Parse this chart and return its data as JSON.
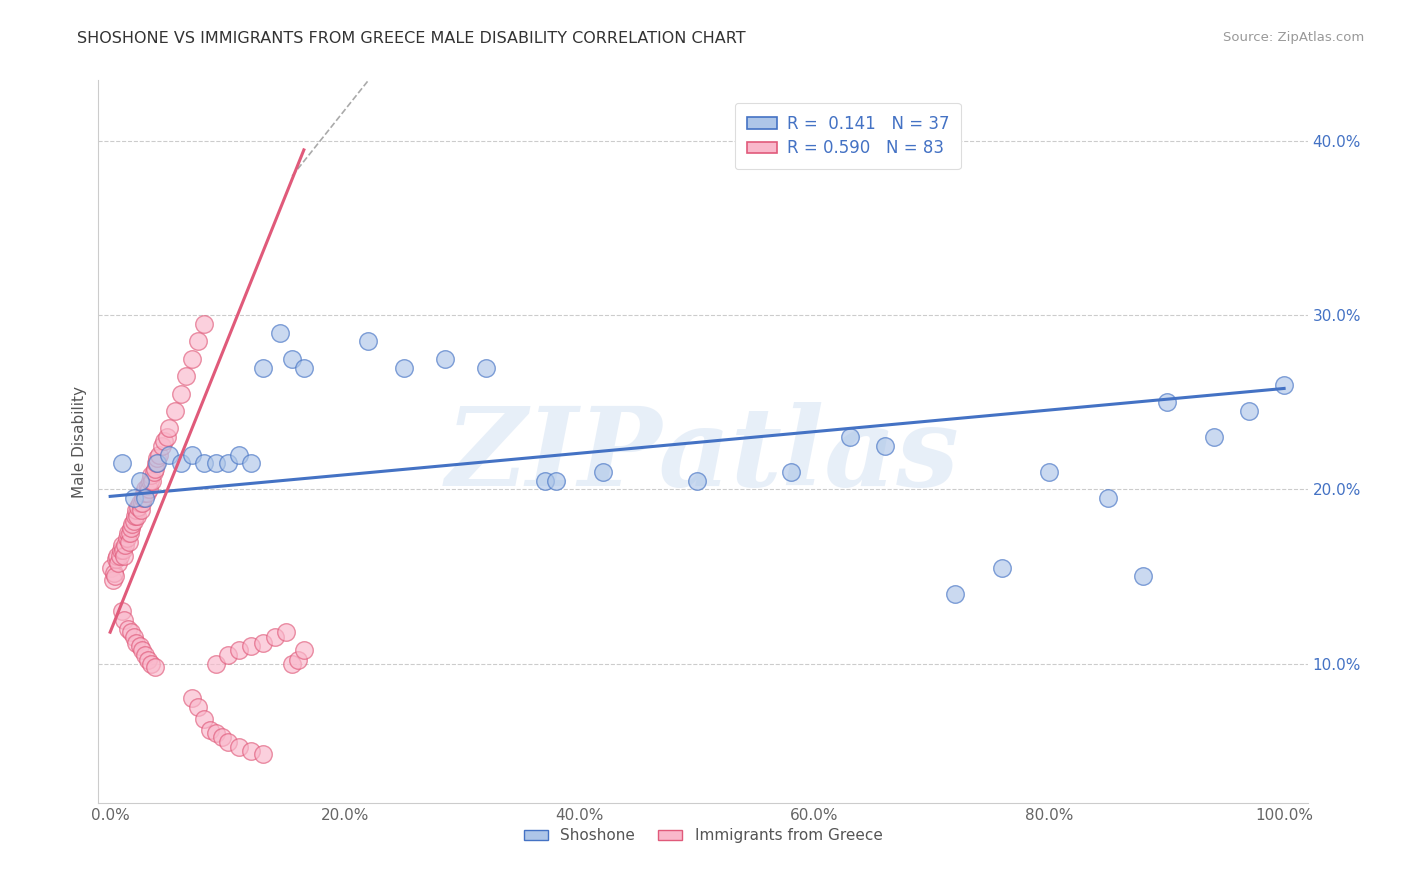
{
  "title": "SHOSHONE VS IMMIGRANTS FROM GREECE MALE DISABILITY CORRELATION CHART",
  "source_text": "Source: ZipAtlas.com",
  "ylabel": "Male Disability",
  "watermark": "ZIPatlas",
  "shoshone_R": 0.141,
  "shoshone_N": 37,
  "greece_R": 0.59,
  "greece_N": 83,
  "shoshone_color": "#aec6e8",
  "greece_color": "#f9b8cb",
  "shoshone_line_color": "#4472c4",
  "greece_line_color": "#e05a7a",
  "background_color": "#ffffff",
  "grid_color": "#cccccc",
  "xlim": [
    -0.01,
    1.02
  ],
  "ylim": [
    0.02,
    0.435
  ],
  "xtick_labels": [
    "0.0%",
    "20.0%",
    "40.0%",
    "60.0%",
    "80.0%",
    "100.0%"
  ],
  "xtick_values": [
    0.0,
    0.2,
    0.4,
    0.6,
    0.8,
    1.0
  ],
  "ytick_labels": [
    "10.0%",
    "20.0%",
    "30.0%",
    "40.0%"
  ],
  "ytick_values": [
    0.1,
    0.2,
    0.3,
    0.4
  ],
  "shoshone_x": [
    0.01,
    0.02,
    0.025,
    0.03,
    0.04,
    0.05,
    0.06,
    0.07,
    0.08,
    0.09,
    0.1,
    0.11,
    0.12,
    0.13,
    0.145,
    0.155,
    0.165,
    0.22,
    0.25,
    0.285,
    0.32,
    0.37,
    0.42,
    0.5,
    0.58,
    0.63,
    0.66,
    0.72,
    0.76,
    0.8,
    0.85,
    0.88,
    0.9,
    0.94,
    0.97,
    1.0,
    0.38
  ],
  "shoshone_y": [
    0.215,
    0.195,
    0.205,
    0.195,
    0.215,
    0.22,
    0.215,
    0.22,
    0.215,
    0.215,
    0.215,
    0.22,
    0.215,
    0.27,
    0.29,
    0.275,
    0.27,
    0.285,
    0.27,
    0.275,
    0.27,
    0.205,
    0.21,
    0.205,
    0.21,
    0.23,
    0.225,
    0.14,
    0.155,
    0.21,
    0.195,
    0.15,
    0.25,
    0.23,
    0.245,
    0.26,
    0.205
  ],
  "greece_x": [
    0.001,
    0.002,
    0.003,
    0.004,
    0.005,
    0.006,
    0.007,
    0.008,
    0.009,
    0.01,
    0.011,
    0.012,
    0.013,
    0.014,
    0.015,
    0.016,
    0.017,
    0.018,
    0.019,
    0.02,
    0.021,
    0.022,
    0.023,
    0.024,
    0.025,
    0.026,
    0.027,
    0.028,
    0.029,
    0.03,
    0.031,
    0.032,
    0.033,
    0.034,
    0.035,
    0.036,
    0.037,
    0.038,
    0.039,
    0.04,
    0.042,
    0.044,
    0.046,
    0.048,
    0.05,
    0.055,
    0.06,
    0.065,
    0.07,
    0.075,
    0.08,
    0.09,
    0.1,
    0.11,
    0.12,
    0.13,
    0.14,
    0.15,
    0.155,
    0.16,
    0.165,
    0.07,
    0.075,
    0.08,
    0.085,
    0.09,
    0.095,
    0.1,
    0.11,
    0.12,
    0.13,
    0.01,
    0.012,
    0.015,
    0.018,
    0.02,
    0.022,
    0.025,
    0.027,
    0.03,
    0.032,
    0.035,
    0.038
  ],
  "greece_y": [
    0.155,
    0.148,
    0.152,
    0.15,
    0.16,
    0.162,
    0.158,
    0.162,
    0.165,
    0.168,
    0.165,
    0.162,
    0.168,
    0.172,
    0.175,
    0.17,
    0.175,
    0.178,
    0.18,
    0.182,
    0.185,
    0.188,
    0.185,
    0.19,
    0.192,
    0.188,
    0.192,
    0.195,
    0.198,
    0.2,
    0.198,
    0.202,
    0.2,
    0.205,
    0.208,
    0.205,
    0.21,
    0.212,
    0.215,
    0.218,
    0.22,
    0.225,
    0.228,
    0.23,
    0.235,
    0.245,
    0.255,
    0.265,
    0.275,
    0.285,
    0.295,
    0.1,
    0.105,
    0.108,
    0.11,
    0.112,
    0.115,
    0.118,
    0.1,
    0.102,
    0.108,
    0.08,
    0.075,
    0.068,
    0.062,
    0.06,
    0.058,
    0.055,
    0.052,
    0.05,
    0.048,
    0.13,
    0.125,
    0.12,
    0.118,
    0.115,
    0.112,
    0.11,
    0.108,
    0.105,
    0.102,
    0.1,
    0.098
  ],
  "shoshone_trend": [
    0.0,
    1.0,
    0.196,
    0.258
  ],
  "greece_trend_x": [
    0.0,
    0.165
  ],
  "greece_trend_y": [
    0.118,
    0.395
  ]
}
